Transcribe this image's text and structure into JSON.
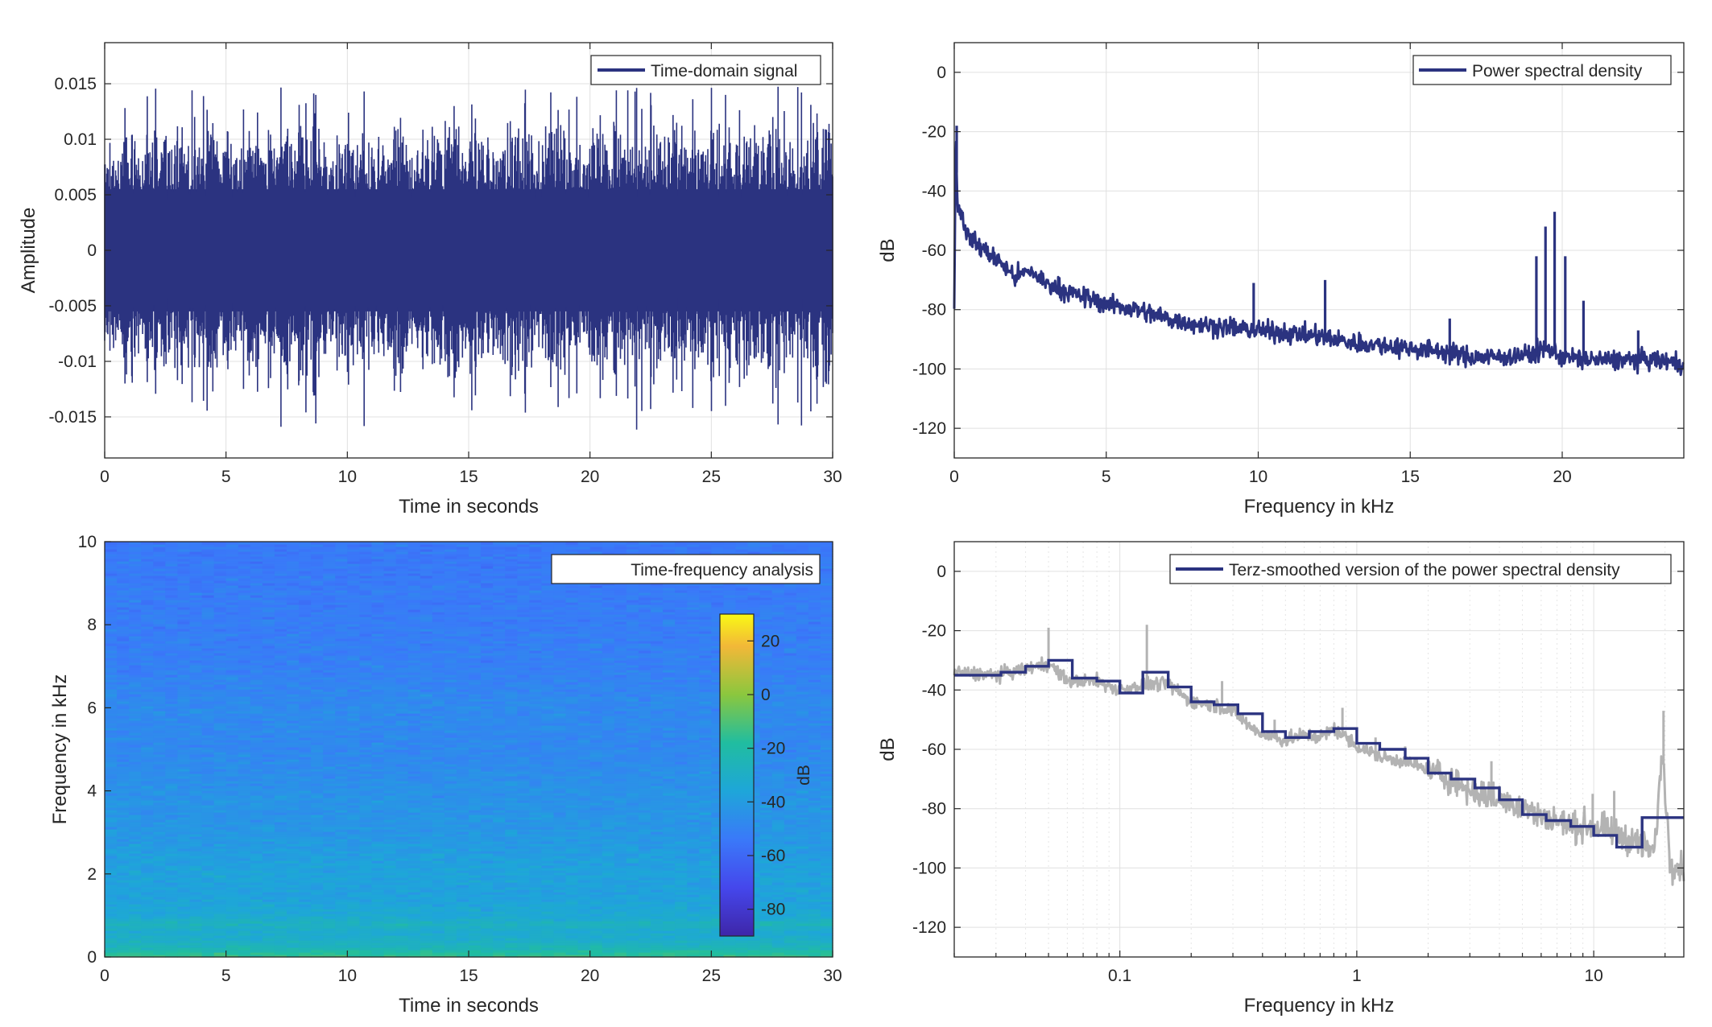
{
  "colors": {
    "series": "#2b3380",
    "background_series": "#b3b3b3",
    "grid": "#e0e0e0",
    "axis": "#262626"
  },
  "chart_data": [
    {
      "id": "time",
      "type": "line",
      "legend": "Time-domain signal",
      "legend_placement": "top-right",
      "xlabel": "Time in seconds",
      "ylabel": "Amplitude",
      "xlim": [
        0,
        30
      ],
      "ylim": [
        -0.0187,
        0.0187
      ],
      "xticks": [
        0,
        5,
        10,
        15,
        20,
        25,
        30
      ],
      "yticks": [
        -0.015,
        -0.01,
        -0.005,
        0,
        0.005,
        0.01,
        0.015
      ],
      "yticklabels": [
        "-0.015",
        "-0.01",
        "-0.005",
        "0",
        "0.005",
        "0.01",
        "0.015"
      ],
      "grid": true,
      "signal_envelope": {
        "typical_peak": 0.009,
        "max": 0.0148,
        "min": -0.0148
      }
    },
    {
      "id": "psd",
      "type": "line",
      "legend": "Power spectral density",
      "legend_placement": "top-right",
      "xlabel": "Frequency in kHz",
      "ylabel": "dB",
      "xlim": [
        0,
        24
      ],
      "ylim": [
        -130,
        10
      ],
      "xticks": [
        0,
        5,
        10,
        15,
        20
      ],
      "yticks": [
        -120,
        -100,
        -80,
        -60,
        -40,
        -20,
        0
      ],
      "grid": true,
      "x": [
        0,
        0.05,
        0.1,
        0.3,
        0.5,
        1,
        1.5,
        2,
        2.5,
        3,
        4,
        5,
        6,
        7,
        8,
        9,
        10,
        11,
        12,
        13,
        14,
        15,
        16,
        17,
        18,
        19,
        19.5,
        20,
        21,
        22,
        23,
        24
      ],
      "y": [
        -78,
        -20,
        -43,
        -50,
        -56,
        -60,
        -64,
        -69,
        -67,
        -71,
        -75,
        -78,
        -80,
        -83,
        -85,
        -86,
        -87,
        -88,
        -89,
        -91,
        -92,
        -93,
        -94,
        -96,
        -96,
        -95,
        -93,
        -96,
        -97,
        -97,
        -97,
        -98
      ],
      "peaks": [
        {
          "x": 0.08,
          "y": -18
        },
        {
          "x": 9.85,
          "y": -71
        },
        {
          "x": 12.2,
          "y": -70
        },
        {
          "x": 16.3,
          "y": -83
        },
        {
          "x": 19.15,
          "y": -62
        },
        {
          "x": 19.45,
          "y": -52
        },
        {
          "x": 19.75,
          "y": -47
        },
        {
          "x": 20.1,
          "y": -62
        },
        {
          "x": 20.7,
          "y": -77
        },
        {
          "x": 22.5,
          "y": -87
        }
      ]
    },
    {
      "id": "spectrogram",
      "type": "heatmap",
      "legend": "Time-frequency analysis",
      "legend_placement": "top-right",
      "xlabel": "Time in seconds",
      "ylabel": "Frequency in kHz",
      "xlim": [
        0,
        30
      ],
      "ylim": [
        0,
        10
      ],
      "xticks": [
        0,
        5,
        10,
        15,
        20,
        25,
        30
      ],
      "yticks": [
        0,
        2,
        4,
        6,
        8,
        10
      ],
      "colorbar": {
        "label": "dB",
        "range": [
          -90,
          30
        ],
        "ticks": [
          -80,
          -60,
          -40,
          -20,
          0,
          20
        ]
      },
      "freq_profile_khz": [
        0,
        0.1,
        0.2,
        0.4,
        0.6,
        0.8,
        1,
        1.5,
        2,
        3,
        4,
        5,
        6,
        7,
        8,
        9,
        10
      ],
      "freq_profile_db": [
        -14,
        -18,
        -24,
        -30,
        -33,
        -27,
        -34,
        -38,
        -37,
        -42,
        -44,
        -48,
        -47,
        -51,
        -52,
        -53,
        -54
      ]
    },
    {
      "id": "terz",
      "type": "line",
      "legend": "Terz-smoothed version of the power spectral density",
      "legend_placement": "top-right",
      "xlabel": "Frequency in kHz",
      "ylabel": "dB",
      "xscale": "log",
      "xlim": [
        0.02,
        24
      ],
      "ylim": [
        -130,
        10
      ],
      "xticks": [
        0.1,
        1,
        10
      ],
      "xticklabels": [
        "0.1",
        "1",
        "10"
      ],
      "yticks": [
        -120,
        -100,
        -80,
        -60,
        -40,
        -20,
        0
      ],
      "grid": true,
      "series": [
        {
          "name": "",
          "color_role": "background_series",
          "x": [
            0.02,
            0.03,
            0.04,
            0.05,
            0.06,
            0.08,
            0.1,
            0.13,
            0.16,
            0.2,
            0.25,
            0.3,
            0.35,
            0.4,
            0.5,
            0.6,
            0.7,
            0.8,
            0.9,
            1,
            1.3,
            1.6,
            2,
            2.5,
            3,
            4,
            5,
            6,
            7,
            8,
            10,
            12,
            15,
            18,
            19.5,
            21,
            24
          ],
          "y": [
            -34,
            -35,
            -33,
            -31,
            -37,
            -37,
            -40,
            -38,
            -38,
            -44,
            -45,
            -47,
            -52,
            -55,
            -57,
            -55,
            -56,
            -53,
            -56,
            -59,
            -63,
            -64,
            -67,
            -70,
            -74,
            -77,
            -79,
            -83,
            -84,
            -86,
            -86,
            -88,
            -91,
            -95,
            -60,
            -98,
            -100
          ],
          "peaks": [
            {
              "x": 0.05,
              "y": -19
            },
            {
              "x": 0.13,
              "y": -18
            },
            {
              "x": 0.27,
              "y": -37
            },
            {
              "x": 0.45,
              "y": -50
            },
            {
              "x": 0.87,
              "y": -46
            },
            {
              "x": 1.2,
              "y": -56
            },
            {
              "x": 1.6,
              "y": -59
            },
            {
              "x": 3.7,
              "y": -64
            },
            {
              "x": 9.9,
              "y": -75
            },
            {
              "x": 12.2,
              "y": -74
            },
            {
              "x": 19.7,
              "y": -47
            }
          ]
        },
        {
          "name": "Terz-smoothed version of the power spectral density",
          "color_role": "series",
          "steps_x": [
            0.02,
            0.025,
            0.0315,
            0.04,
            0.05,
            0.063,
            0.08,
            0.1,
            0.125,
            0.16,
            0.2,
            0.25,
            0.315,
            0.4,
            0.5,
            0.63,
            0.8,
            1,
            1.25,
            1.6,
            2,
            2.5,
            3.15,
            4,
            5,
            6.3,
            8,
            10,
            12.5,
            16,
            20,
            24
          ],
          "steps_y": [
            -35,
            -35,
            -34,
            -32,
            -30,
            -36,
            -37,
            -41,
            -34,
            -39,
            -44,
            -45,
            -48,
            -54,
            -56,
            -54,
            -53,
            -58,
            -60,
            -63,
            -68,
            -70,
            -73,
            -77,
            -82,
            -84,
            -86,
            -89,
            -93,
            -83,
            -83
          ]
        }
      ]
    }
  ]
}
